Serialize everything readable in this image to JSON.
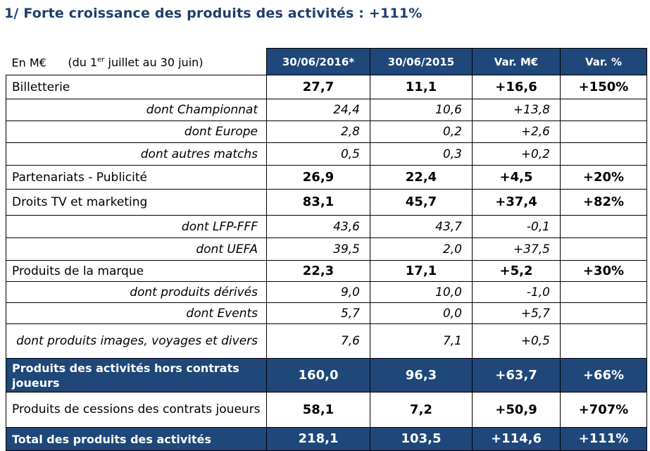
{
  "title": "1/ Forte croissance des produits des activités : +111%",
  "header": {
    "unit": "En M€",
    "period_prefix": "(du 1",
    "period_sup": "er",
    "period_suffix": " juillet au 30 juin)",
    "columns": [
      "30/06/2016*",
      "30/06/2015",
      "Var. M€",
      "Var. %"
    ]
  },
  "header_color": "#1f477a",
  "rows": [
    {
      "type": "main",
      "label": "Billetterie",
      "v": [
        "27,7",
        "11,1",
        "+16,6",
        "+150%"
      ]
    },
    {
      "type": "sub",
      "label": "dont Championnat",
      "v": [
        "24,4",
        "10,6",
        "+13,8",
        ""
      ]
    },
    {
      "type": "sub",
      "label": "dont Europe",
      "v": [
        "2,8",
        "0,2",
        "+2,6",
        ""
      ]
    },
    {
      "type": "sub",
      "label": "dont autres matchs",
      "v": [
        "0,5",
        "0,3",
        "+0,2",
        ""
      ]
    },
    {
      "type": "main",
      "label": "Partenariats - Publicité",
      "v": [
        "26,9",
        "22,4",
        "+4,5",
        "+20%"
      ]
    },
    {
      "type": "main",
      "label": "Droits TV et marketing",
      "v": [
        "83,1",
        "45,7",
        "+37,4",
        "+82%"
      ]
    },
    {
      "type": "sub",
      "label": "dont LFP-FFF",
      "v": [
        "43,6",
        "43,7",
        "-0,1",
        ""
      ]
    },
    {
      "type": "sub",
      "label": "dont UEFA",
      "v": [
        "39,5",
        "2,0",
        "+37,5",
        ""
      ]
    },
    {
      "type": "main",
      "label": "Produits de la marque",
      "v": [
        "22,3",
        "17,1",
        "+5,2",
        "+30%"
      ]
    },
    {
      "type": "sub",
      "label": "dont produits dérivés",
      "v": [
        "9,0",
        "10,0",
        "-1,0",
        ""
      ]
    },
    {
      "type": "sub",
      "label": "dont Events",
      "v": [
        "5,7",
        "0,0",
        "+5,7",
        ""
      ]
    },
    {
      "type": "sub",
      "label": "dont produits images, voyages et divers",
      "v": [
        "7,6",
        "7,1",
        "+0,5",
        ""
      ]
    },
    {
      "type": "dark",
      "label": "Produits des activités hors contrats joueurs",
      "v": [
        "160,0",
        "96,3",
        "+63,7",
        "+66%"
      ]
    },
    {
      "type": "main two",
      "label": "Produits de cessions des contrats joueurs",
      "v": [
        "58,1",
        "7,2",
        "+50,9",
        "+707%"
      ]
    },
    {
      "type": "dark",
      "label": "Total des produits des activités",
      "v": [
        "218,1",
        "103,5",
        "+114,6",
        "+111%"
      ]
    }
  ]
}
